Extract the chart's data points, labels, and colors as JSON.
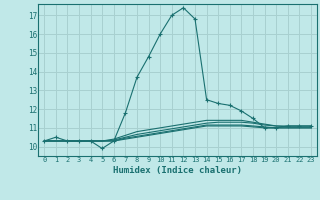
{
  "xlabel": "Humidex (Indice chaleur)",
  "background_color": "#c0e8e8",
  "grid_color": "#a8d0d0",
  "line_color": "#1a7070",
  "xlim": [
    -0.5,
    23.5
  ],
  "ylim": [
    9.5,
    17.6
  ],
  "xticks": [
    0,
    1,
    2,
    3,
    4,
    5,
    6,
    7,
    8,
    9,
    10,
    11,
    12,
    13,
    14,
    15,
    16,
    17,
    18,
    19,
    20,
    21,
    22,
    23
  ],
  "yticks": [
    10,
    11,
    12,
    13,
    14,
    15,
    16,
    17
  ],
  "lines": [
    {
      "x": [
        0,
        1,
        2,
        3,
        4,
        5,
        6,
        7,
        8,
        9,
        10,
        11,
        12,
        13,
        14,
        15,
        16,
        17,
        18,
        19,
        20,
        21,
        22,
        23
      ],
      "y": [
        10.3,
        10.5,
        10.3,
        10.3,
        10.3,
        9.9,
        10.3,
        11.8,
        13.7,
        14.8,
        16.0,
        17.0,
        17.4,
        16.8,
        12.5,
        12.3,
        12.2,
        11.9,
        11.5,
        11.0,
        11.0,
        11.1,
        11.1,
        11.1
      ],
      "marker": true
    },
    {
      "x": [
        0,
        1,
        2,
        3,
        4,
        5,
        6,
        7,
        8,
        9,
        10,
        11,
        12,
        13,
        14,
        15,
        16,
        17,
        18,
        19,
        20,
        21,
        22,
        23
      ],
      "y": [
        10.3,
        10.3,
        10.3,
        10.3,
        10.3,
        10.3,
        10.4,
        10.6,
        10.8,
        10.9,
        11.0,
        11.1,
        11.2,
        11.3,
        11.4,
        11.4,
        11.4,
        11.4,
        11.3,
        11.2,
        11.1,
        11.1,
        11.1,
        11.1
      ],
      "marker": false
    },
    {
      "x": [
        0,
        1,
        2,
        3,
        4,
        5,
        6,
        7,
        8,
        9,
        10,
        11,
        12,
        13,
        14,
        15,
        16,
        17,
        18,
        19,
        20,
        21,
        22,
        23
      ],
      "y": [
        10.3,
        10.3,
        10.3,
        10.3,
        10.3,
        10.3,
        10.35,
        10.5,
        10.65,
        10.75,
        10.85,
        10.95,
        11.05,
        11.15,
        11.25,
        11.3,
        11.3,
        11.3,
        11.25,
        11.15,
        11.1,
        11.05,
        11.05,
        11.05
      ],
      "marker": false
    },
    {
      "x": [
        0,
        1,
        2,
        3,
        4,
        5,
        6,
        7,
        8,
        9,
        10,
        11,
        12,
        13,
        14,
        15,
        16,
        17,
        18,
        19,
        20,
        21,
        22,
        23
      ],
      "y": [
        10.3,
        10.3,
        10.3,
        10.3,
        10.3,
        10.3,
        10.3,
        10.45,
        10.55,
        10.65,
        10.75,
        10.85,
        10.95,
        11.05,
        11.15,
        11.15,
        11.15,
        11.15,
        11.1,
        11.05,
        11.0,
        11.0,
        11.0,
        11.0
      ],
      "marker": false
    },
    {
      "x": [
        0,
        1,
        2,
        3,
        4,
        5,
        6,
        7,
        8,
        9,
        10,
        11,
        12,
        13,
        14,
        15,
        16,
        17,
        18,
        19,
        20,
        21,
        22,
        23
      ],
      "y": [
        10.3,
        10.3,
        10.3,
        10.3,
        10.3,
        10.3,
        10.3,
        10.4,
        10.5,
        10.6,
        10.7,
        10.8,
        10.9,
        11.0,
        11.1,
        11.1,
        11.1,
        11.1,
        11.05,
        11.0,
        11.0,
        11.0,
        11.0,
        11.0
      ],
      "marker": false
    }
  ]
}
